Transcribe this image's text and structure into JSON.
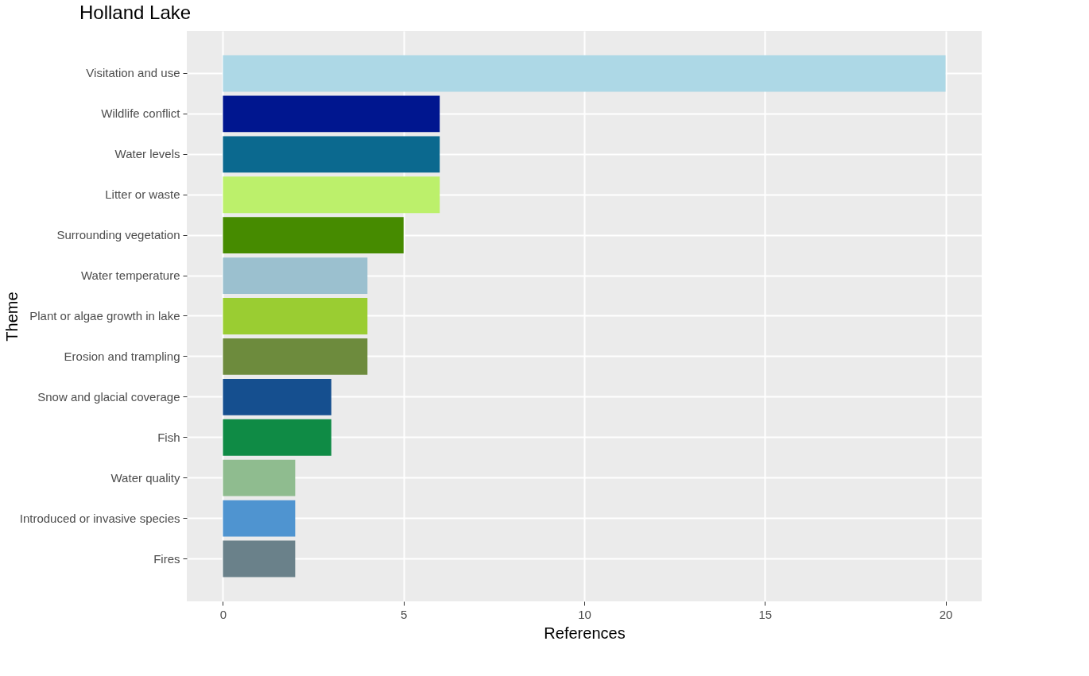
{
  "chart_data": {
    "type": "bar",
    "orientation": "horizontal",
    "title": "Holland Lake",
    "xlabel": "References",
    "ylabel": "Theme",
    "categories": [
      "Visitation and use",
      "Wildlife conflict",
      "Water levels",
      "Litter or waste",
      "Surrounding vegetation",
      "Water temperature",
      "Plant or algae growth in lake",
      "Erosion and trampling",
      "Snow and glacial coverage",
      "Fish",
      "Water quality",
      "Introduced or invasive species",
      "Fires"
    ],
    "values": [
      20,
      6,
      6,
      6,
      5,
      4,
      4,
      4,
      3,
      3,
      2,
      2,
      2
    ],
    "colors": [
      "#add8e6",
      "#00168f",
      "#0b698f",
      "#bcf06b",
      "#468b00",
      "#9bc0cf",
      "#9acd32",
      "#6d8b3d",
      "#154f8f",
      "#0f8b45",
      "#8fbc8f",
      "#4f94d0",
      "#6a818a"
    ],
    "xlim": [
      -1,
      21
    ],
    "xticks": [
      0,
      5,
      10,
      15,
      20
    ],
    "grid": true
  }
}
